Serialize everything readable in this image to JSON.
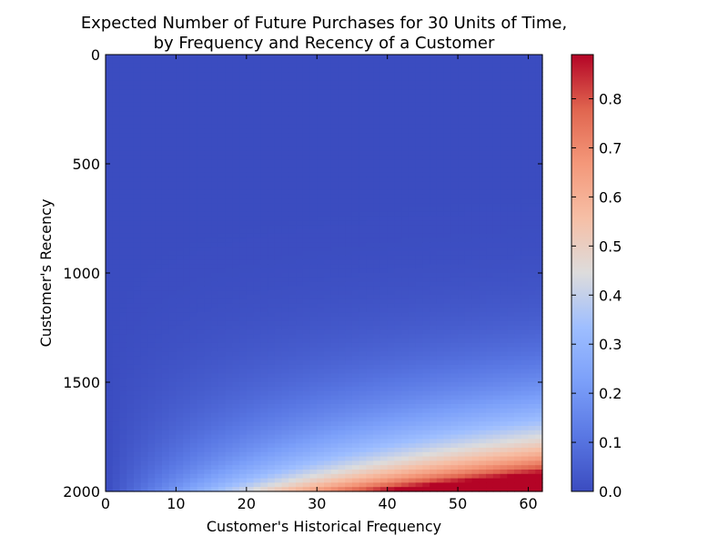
{
  "chart_data": {
    "type": "heatmap",
    "title_lines": [
      "Expected Number of Future Purchases for 30 Units of Time,",
      "by Frequency and Recency of a Customer"
    ],
    "xlabel": "Customer's Historical Frequency",
    "ylabel": "Customer's Recency",
    "x_range": [
      0,
      62
    ],
    "y_range": [
      0,
      2000
    ],
    "y_inverted": true,
    "x_ticks": [
      0,
      10,
      20,
      30,
      40,
      50,
      60
    ],
    "y_ticks": [
      0,
      500,
      1000,
      1500,
      2000
    ],
    "colorbar": {
      "colormap": "coolwarm",
      "range": [
        0,
        0.89
      ],
      "ticks": [
        "0.0",
        "0.1",
        "0.2",
        "0.3",
        "0.4",
        "0.5",
        "0.6",
        "0.7",
        "0.8"
      ]
    },
    "grid": false
  }
}
